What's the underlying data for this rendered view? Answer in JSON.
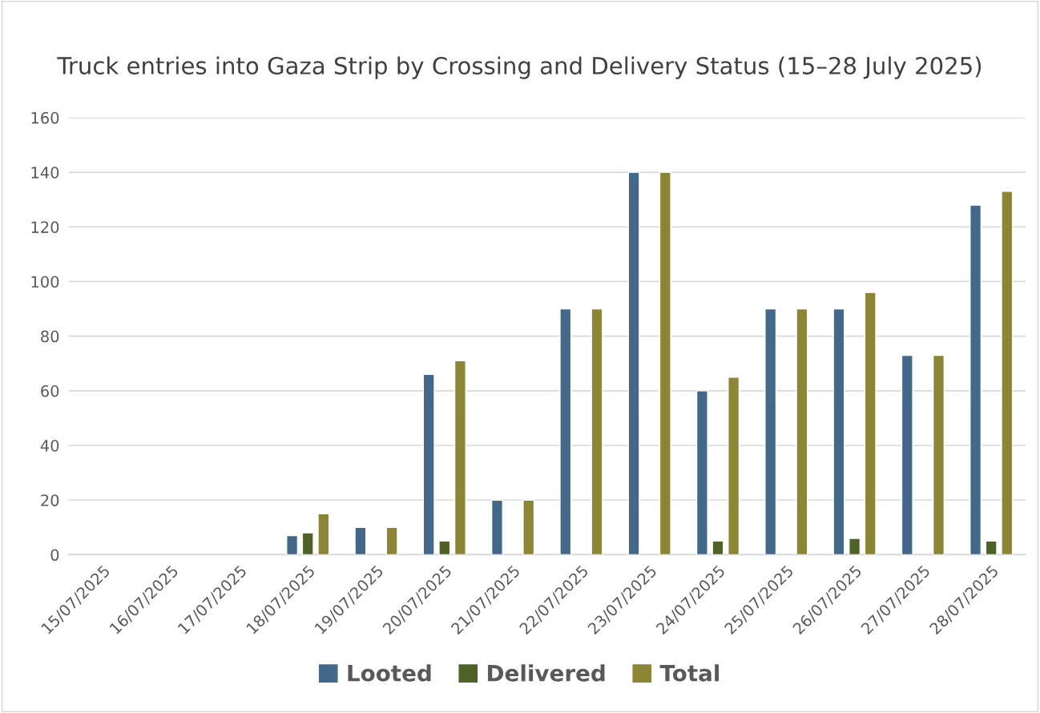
{
  "chart_data": {
    "type": "bar",
    "title": "Truck entries into Gaza Strip by Crossing and Delivery Status (15–28 July 2025)",
    "categories": [
      "15/07/2025",
      "16/07/2025",
      "17/07/2025",
      "18/07/2025",
      "19/07/2025",
      "20/07/2025",
      "21/07/2025",
      "22/07/2025",
      "23/07/2025",
      "24/07/2025",
      "25/07/2025",
      "26/07/2025",
      "27/07/2025",
      "28/07/2025"
    ],
    "series": [
      {
        "name": "Looted",
        "color": "#44688a",
        "values": [
          null,
          null,
          null,
          7,
          10,
          66,
          20,
          90,
          140,
          60,
          90,
          90,
          73,
          128
        ]
      },
      {
        "name": "Delivered",
        "color": "#4f6228",
        "values": [
          null,
          null,
          null,
          8,
          null,
          5,
          null,
          null,
          null,
          5,
          null,
          6,
          null,
          5
        ]
      },
      {
        "name": "Total",
        "color": "#8c8536",
        "values": [
          null,
          null,
          null,
          15,
          10,
          71,
          20,
          90,
          140,
          65,
          90,
          96,
          73,
          133
        ]
      }
    ],
    "ylim": [
      0,
      160
    ],
    "yticks": [
      0,
      20,
      40,
      60,
      80,
      100,
      120,
      140,
      160
    ],
    "grid": "y",
    "legend": "bottom"
  }
}
